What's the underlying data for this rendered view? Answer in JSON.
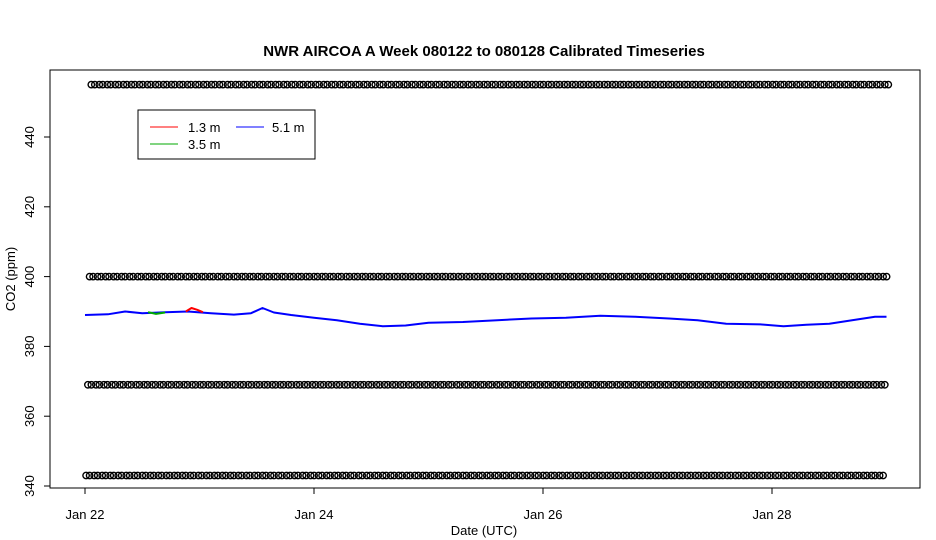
{
  "chart_data": {
    "type": "line",
    "title": "NWR AIRCOA A  Week 080122 to 080128  Calibrated Timeseries",
    "xlabel": "Date (UTC)",
    "ylabel": "CO2 (ppm)",
    "xlim_days": [
      21.9,
      29.2
    ],
    "ylim": [
      340,
      458
    ],
    "x_ticks": [
      {
        "day": 22,
        "label": "Jan 22"
      },
      {
        "day": 24,
        "label": "Jan 24"
      },
      {
        "day": 26,
        "label": "Jan 26"
      },
      {
        "day": 28,
        "label": "Jan 28"
      }
    ],
    "y_ticks": [
      340,
      360,
      380,
      400,
      420,
      440
    ],
    "legend": {
      "placement": "top-left",
      "entries": [
        {
          "name": "1.3 m",
          "color": "#ff0000"
        },
        {
          "name": "3.5 m",
          "color": "#00aa00"
        },
        {
          "name": "5.1 m",
          "color": "#0000ff"
        }
      ]
    },
    "series": [
      {
        "name": "5.1 m",
        "color": "#0000ff",
        "points": [
          [
            22.0,
            389.0
          ],
          [
            22.2,
            389.2
          ],
          [
            22.35,
            390.0
          ],
          [
            22.5,
            389.5
          ],
          [
            22.7,
            389.8
          ],
          [
            22.9,
            390.0
          ],
          [
            23.1,
            389.5
          ],
          [
            23.3,
            389.1
          ],
          [
            23.45,
            389.5
          ],
          [
            23.55,
            391.0
          ],
          [
            23.65,
            389.7
          ],
          [
            23.8,
            389.0
          ],
          [
            24.0,
            388.2
          ],
          [
            24.2,
            387.5
          ],
          [
            24.4,
            386.5
          ],
          [
            24.6,
            385.8
          ],
          [
            24.8,
            386.0
          ],
          [
            25.0,
            386.8
          ],
          [
            25.3,
            387.0
          ],
          [
            25.6,
            387.5
          ],
          [
            25.9,
            388.0
          ],
          [
            26.2,
            388.2
          ],
          [
            26.5,
            388.8
          ],
          [
            26.8,
            388.5
          ],
          [
            27.1,
            388.0
          ],
          [
            27.35,
            387.5
          ],
          [
            27.6,
            386.5
          ],
          [
            27.9,
            386.3
          ],
          [
            28.1,
            385.8
          ],
          [
            28.3,
            386.2
          ],
          [
            28.5,
            386.5
          ],
          [
            28.7,
            387.5
          ],
          [
            28.9,
            388.5
          ],
          [
            29.0,
            388.5
          ]
        ]
      },
      {
        "name": "1.3 m",
        "color": "#ff0000",
        "points": [
          [
            22.88,
            390.0
          ],
          [
            22.93,
            391.0
          ],
          [
            22.98,
            390.5
          ],
          [
            23.03,
            389.8
          ]
        ]
      },
      {
        "name": "3.5 m",
        "color": "#00aa00",
        "points": [
          [
            22.55,
            389.8
          ],
          [
            22.62,
            389.3
          ],
          [
            22.7,
            389.7
          ]
        ]
      }
    ],
    "calibration_markers": {
      "marker": "open-circle",
      "levels_ppm": [
        343.0,
        369.0,
        400.0,
        455.0
      ],
      "interval_days": 0.07,
      "start_day": 22.01,
      "end_day": 29.0
    }
  }
}
